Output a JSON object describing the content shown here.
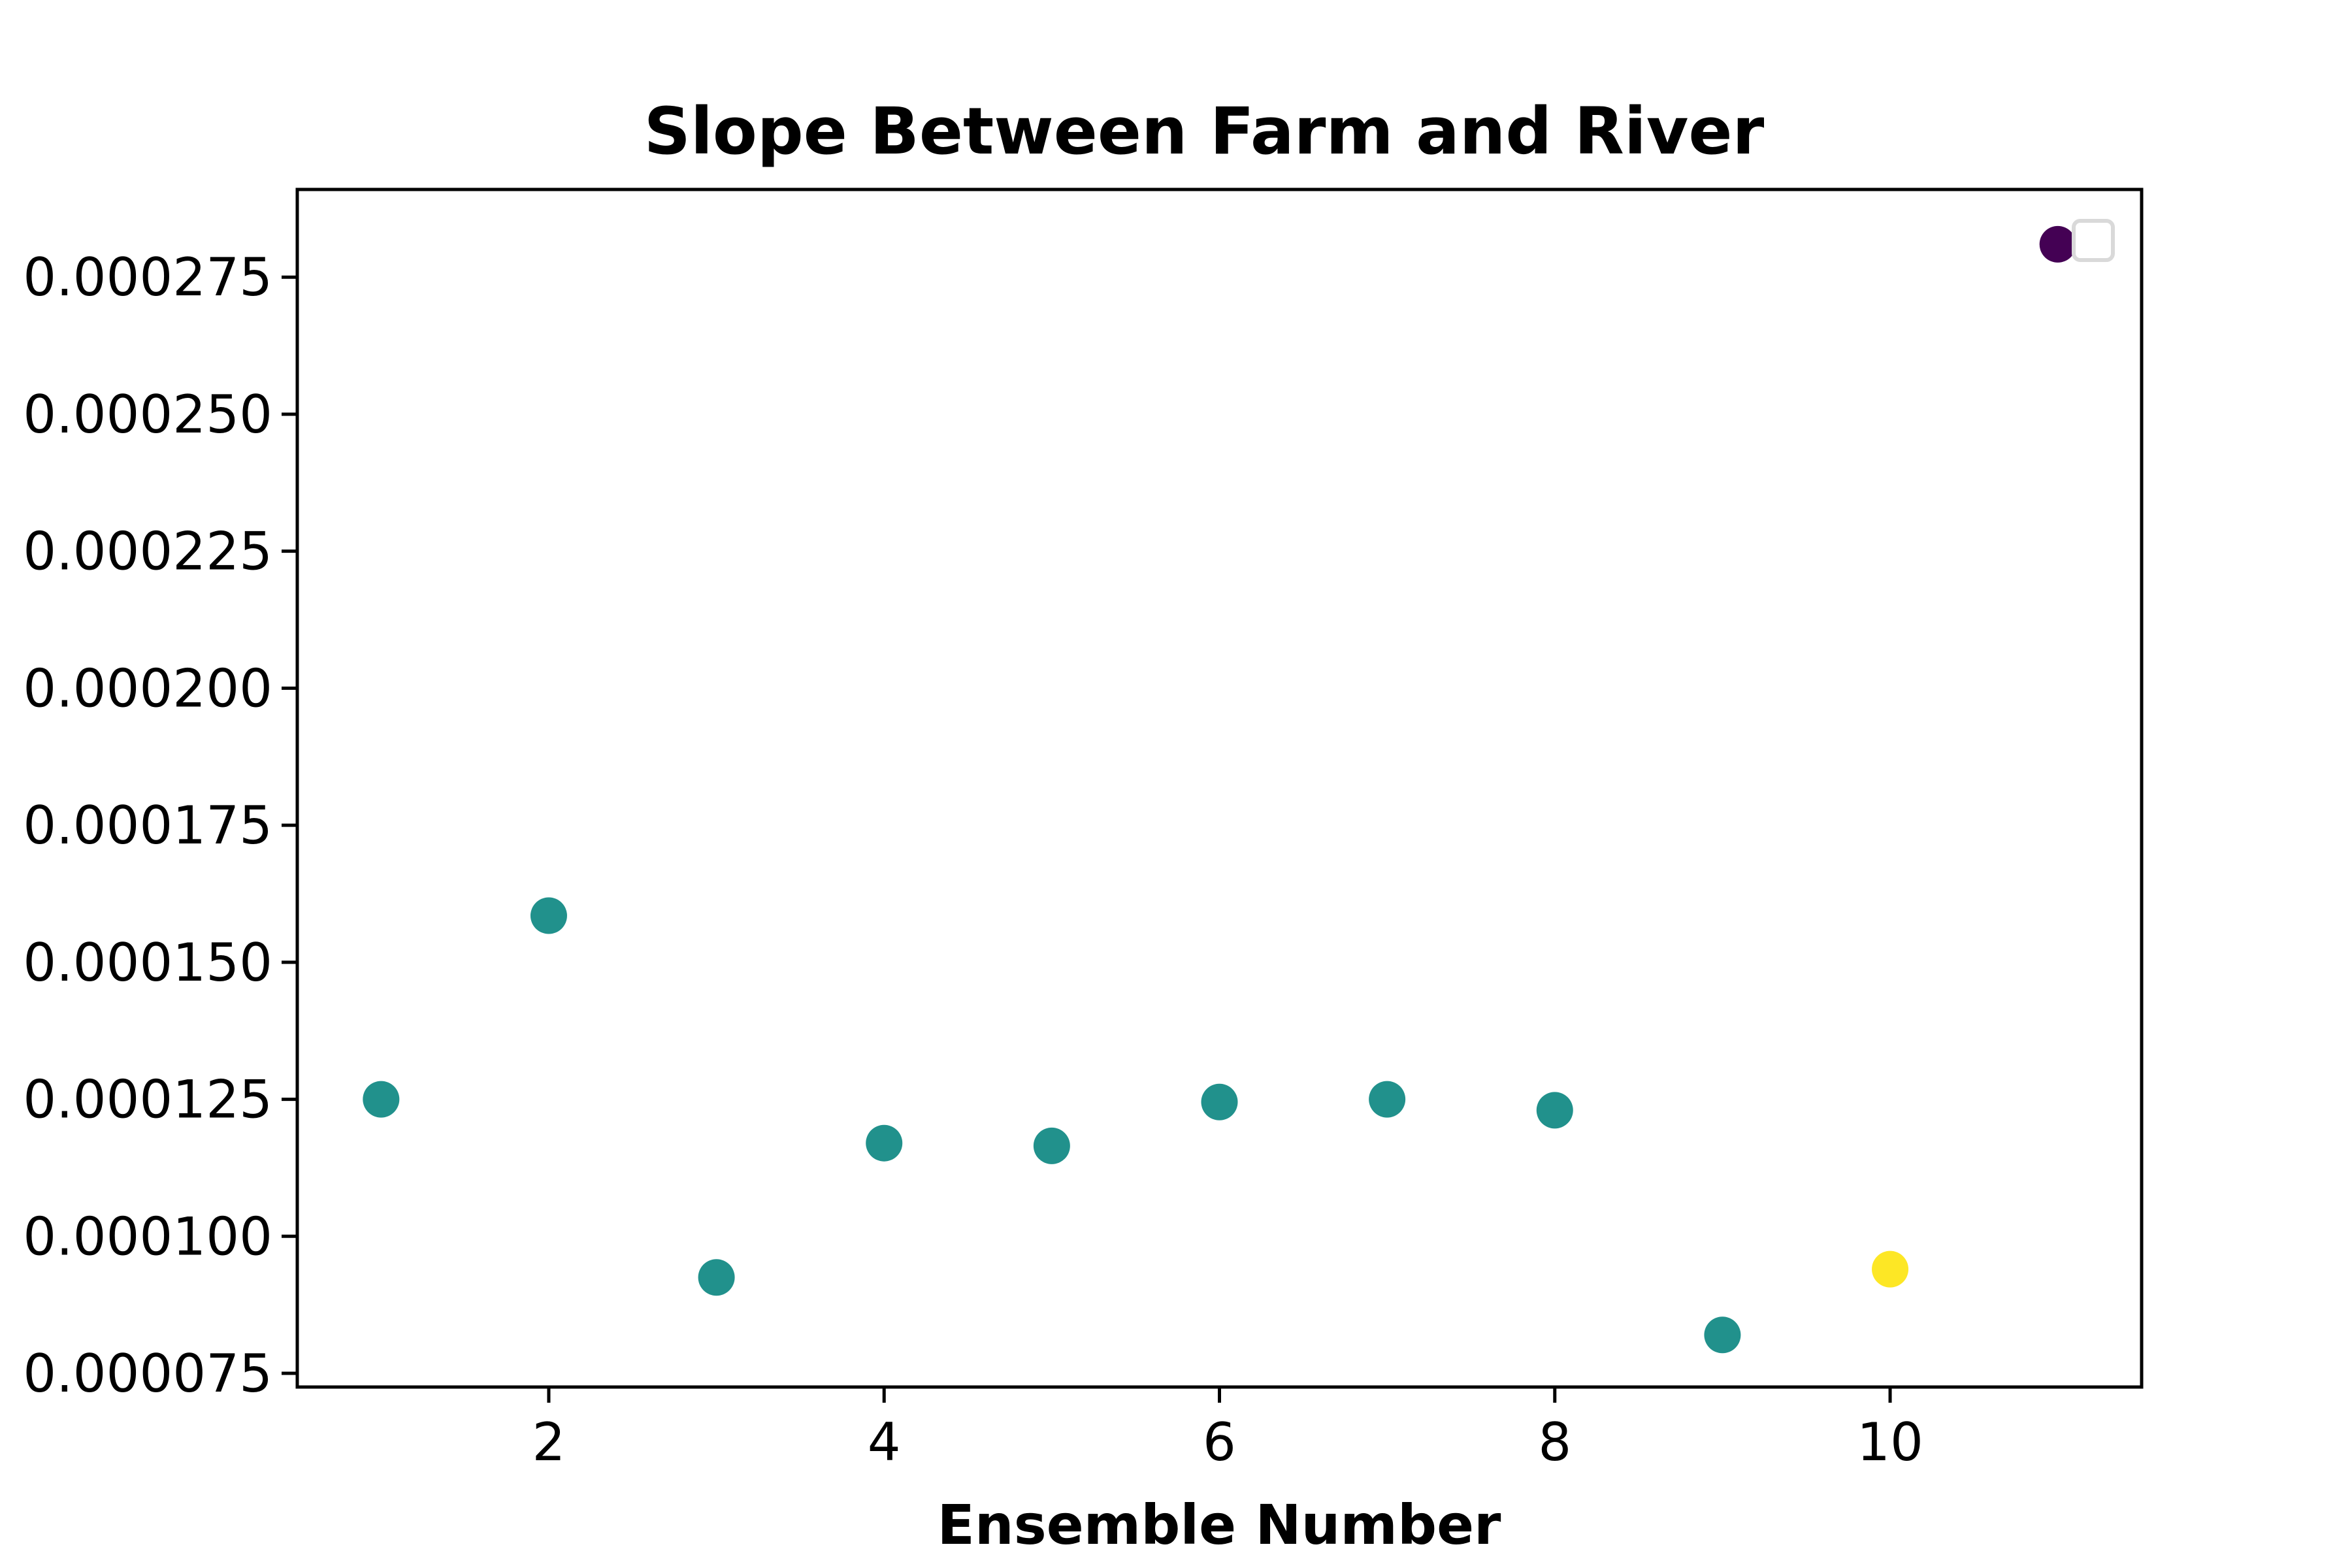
{
  "chart_data": {
    "type": "scatter",
    "title": "Slope Between Farm and River",
    "xlabel": "Ensemble Number",
    "ylabel": "",
    "xlim": [
      0.5,
      11.5
    ],
    "ylim": [
      7.25e-05,
      0.000291
    ],
    "xticks": [
      2,
      4,
      6,
      8,
      10
    ],
    "xtick_labels": [
      "2",
      "4",
      "6",
      "8",
      "10"
    ],
    "yticks": [
      7.5e-05,
      0.0001,
      0.000125,
      0.00015,
      0.000175,
      0.0002,
      0.000225,
      0.00025,
      0.000275
    ],
    "ytick_labels": [
      "0.000075",
      "0.000100",
      "0.000125",
      "0.000150",
      "0.000175",
      "0.000200",
      "0.000225",
      "0.000250",
      "0.000275"
    ],
    "grid": false,
    "legend": {
      "placement": "top-right",
      "entries": []
    },
    "points": [
      {
        "x": 1,
        "y": 0.000125,
        "color": "#21918c"
      },
      {
        "x": 2,
        "y": 0.0001585,
        "color": "#21918c"
      },
      {
        "x": 3,
        "y": 9.25e-05,
        "color": "#21918c"
      },
      {
        "x": 4,
        "y": 0.000117,
        "color": "#21918c"
      },
      {
        "x": 5,
        "y": 0.0001165,
        "color": "#21918c"
      },
      {
        "x": 6,
        "y": 0.0001245,
        "color": "#21918c"
      },
      {
        "x": 7,
        "y": 0.000125,
        "color": "#21918c"
      },
      {
        "x": 8,
        "y": 0.000123,
        "color": "#21918c"
      },
      {
        "x": 9,
        "y": 8.2e-05,
        "color": "#21918c"
      },
      {
        "x": 10,
        "y": 9.4e-05,
        "color": "#fde725"
      },
      {
        "x": 11,
        "y": 0.000281,
        "color": "#440154"
      }
    ]
  }
}
